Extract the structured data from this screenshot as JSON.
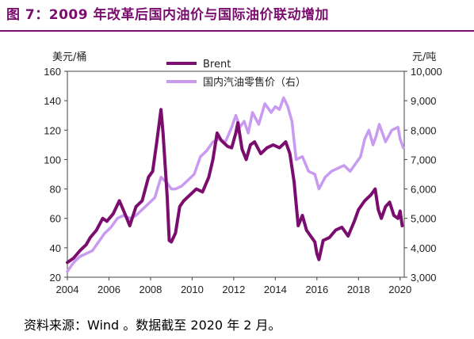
{
  "header": {
    "title": "图 7：2009 年改革后国内油价与国际油价联动增加"
  },
  "footer": {
    "source": "资料来源：Wind 。数据截至 2020 年 2 月。"
  },
  "colors": {
    "title": "#7a0d6e",
    "brent": "#7a0d6e",
    "domestic": "#c89af0"
  },
  "chart_data": {
    "type": "line",
    "left_unit": "美元/桶",
    "right_unit": "元/吨",
    "x_ticks": [
      "2004",
      "2006",
      "2008",
      "2010",
      "2012",
      "2014",
      "2016",
      "2018",
      "2020"
    ],
    "y_left_ticks": [
      "20",
      "40",
      "60",
      "80",
      "100",
      "120",
      "140",
      "160"
    ],
    "y_right_ticks": [
      "3,000",
      "4,000",
      "5,000",
      "6,000",
      "7,000",
      "8,000",
      "9,000",
      "10,000"
    ],
    "xlim": [
      2004,
      2020.2
    ],
    "ylim_left": [
      20,
      160
    ],
    "ylim_right": [
      3000,
      10000
    ],
    "series": [
      {
        "name": "Brent",
        "axis": "left",
        "color": "#7a0d6e",
        "x": [
          2004.0,
          2004.3,
          2004.6,
          2004.9,
          2005.1,
          2005.4,
          2005.7,
          2005.9,
          2006.2,
          2006.5,
          2006.8,
          2007.0,
          2007.3,
          2007.6,
          2007.9,
          2008.1,
          2008.3,
          2008.5,
          2008.6,
          2008.8,
          2008.9,
          2009.0,
          2009.2,
          2009.4,
          2009.6,
          2009.9,
          2010.2,
          2010.5,
          2010.8,
          2011.0,
          2011.2,
          2011.4,
          2011.7,
          2011.9,
          2012.1,
          2012.2,
          2012.4,
          2012.6,
          2012.8,
          2013.0,
          2013.3,
          2013.6,
          2013.9,
          2014.2,
          2014.5,
          2014.7,
          2014.9,
          2015.1,
          2015.3,
          2015.5,
          2015.7,
          2015.9,
          2016.0,
          2016.1,
          2016.3,
          2016.6,
          2016.9,
          2017.2,
          2017.5,
          2017.8,
          2018.0,
          2018.3,
          2018.6,
          2018.8,
          2018.95,
          2019.1,
          2019.3,
          2019.5,
          2019.7,
          2019.9,
          2020.0,
          2020.1
        ],
        "y": [
          30,
          33,
          38,
          42,
          47,
          52,
          60,
          58,
          63,
          72,
          62,
          55,
          68,
          72,
          88,
          92,
          112,
          134,
          118,
          75,
          45,
          44,
          50,
          68,
          72,
          76,
          80,
          78,
          88,
          100,
          118,
          113,
          109,
          108,
          118,
          125,
          107,
          100,
          110,
          112,
          104,
          108,
          110,
          108,
          112,
          104,
          85,
          55,
          62,
          52,
          48,
          44,
          36,
          32,
          45,
          47,
          52,
          54,
          48,
          58,
          66,
          72,
          76,
          80,
          66,
          60,
          68,
          71,
          62,
          60,
          65,
          55
        ]
      },
      {
        "name": "国内汽油零售价（右）",
        "axis": "right",
        "color": "#c89af0",
        "x": [
          2004.0,
          2004.3,
          2004.6,
          2004.9,
          2005.2,
          2005.5,
          2005.8,
          2006.1,
          2006.4,
          2006.7,
          2007.0,
          2007.3,
          2007.6,
          2007.9,
          2008.2,
          2008.5,
          2008.8,
          2009.0,
          2009.2,
          2009.5,
          2009.8,
          2010.1,
          2010.4,
          2010.7,
          2011.0,
          2011.3,
          2011.6,
          2011.9,
          2012.1,
          2012.3,
          2012.5,
          2012.7,
          2012.9,
          2013.2,
          2013.5,
          2013.8,
          2014.0,
          2014.2,
          2014.4,
          2014.6,
          2014.8,
          2015.0,
          2015.3,
          2015.6,
          2015.9,
          2016.1,
          2016.4,
          2016.7,
          2017.0,
          2017.3,
          2017.6,
          2017.9,
          2018.1,
          2018.3,
          2018.5,
          2018.7,
          2018.85,
          2019.0,
          2019.3,
          2019.6,
          2019.9,
          2020.0,
          2020.15
        ],
        "y": [
          3200,
          3500,
          3700,
          3800,
          3900,
          4200,
          4500,
          4700,
          5000,
          5100,
          5000,
          5100,
          5300,
          5500,
          5700,
          6400,
          6200,
          6000,
          6000,
          6100,
          6300,
          6500,
          7100,
          7300,
          7600,
          7700,
          7600,
          8100,
          8500,
          8100,
          8300,
          7900,
          8600,
          8200,
          8900,
          8600,
          8800,
          8700,
          9100,
          8800,
          8300,
          7000,
          7100,
          6600,
          6500,
          6000,
          6400,
          6600,
          6700,
          6800,
          6600,
          6900,
          7100,
          7700,
          8000,
          7500,
          7800,
          8200,
          7600,
          8000,
          8100,
          7700,
          7400
        ]
      }
    ]
  }
}
